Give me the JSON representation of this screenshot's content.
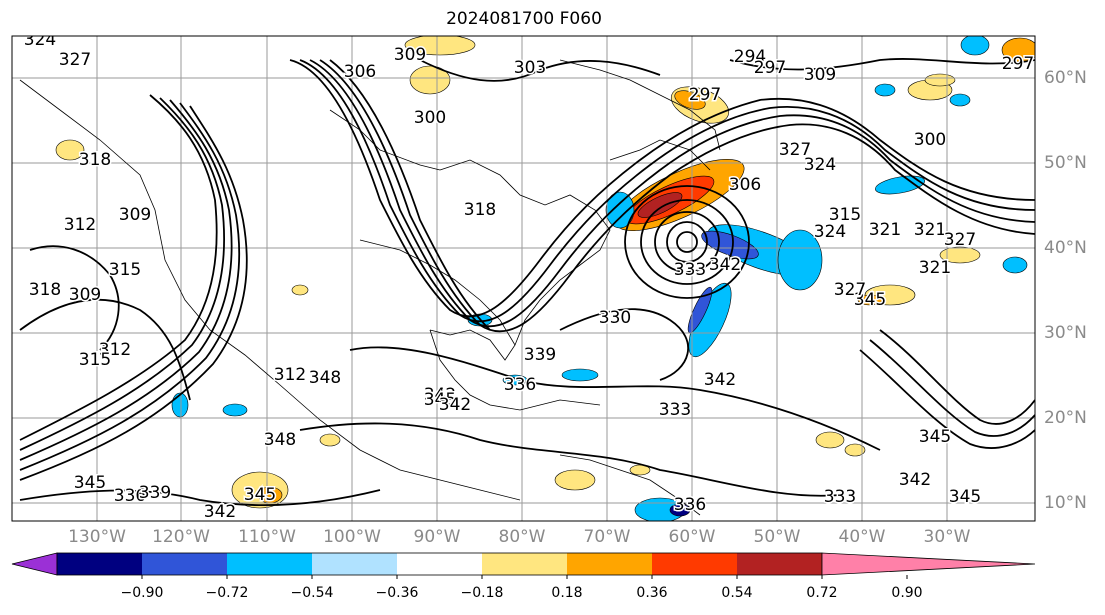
{
  "title": "2024081700 F060",
  "lon_labels": [
    "130°W",
    "120°W",
    "110°W",
    "100°W",
    "90°W",
    "80°W",
    "70°W",
    "60°W",
    "50°W",
    "40°W",
    "30°W"
  ],
  "lat_labels": [
    "60°N",
    "50°N",
    "40°N",
    "30°N",
    "20°N",
    "10°N"
  ],
  "colorbar": {
    "ticks": [
      "−0.90",
      "−0.72",
      "−0.54",
      "−0.36",
      "−0.18",
      "0.18",
      "0.36",
      "0.54",
      "0.72",
      "0.90"
    ],
    "colors": [
      "#9b30d6",
      "#000080",
      "#3055d8",
      "#00bfff",
      "#b0e2ff",
      "#ffffff",
      "#ffe680",
      "#ffa500",
      "#ff3a00",
      "#b22222",
      "#ff80a8"
    ]
  },
  "contour_labels": [
    "324",
    "327",
    "318",
    "312",
    "309",
    "315",
    "318",
    "309",
    "312",
    "315",
    "306",
    "300",
    "318",
    "309",
    "303",
    "294",
    "297",
    "309",
    "300",
    "297",
    "297",
    "306",
    "327",
    "324",
    "315",
    "321",
    "333",
    "342",
    "330",
    "321",
    "339",
    "336",
    "342",
    "348",
    "345",
    "345",
    "348",
    "336",
    "339",
    "345",
    "342",
    "333",
    "342",
    "345",
    "342",
    "345",
    "333",
    "336",
    "342",
    "345",
    "327",
    "324",
    "321",
    "327",
    "312"
  ]
}
